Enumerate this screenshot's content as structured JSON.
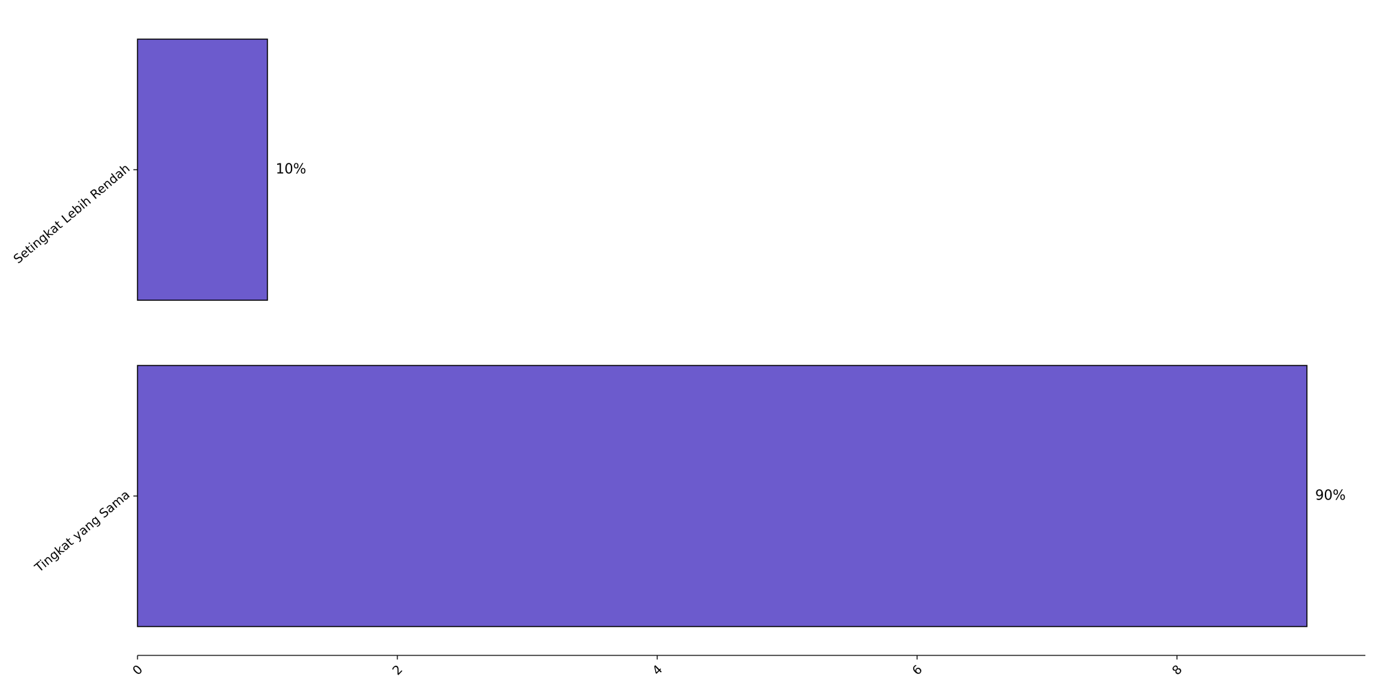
{
  "chart_data": {
    "type": "bar",
    "orientation": "horizontal",
    "categories": [
      "Setingkat Lebih Rendah",
      "Tingkat yang Sama"
    ],
    "values": [
      1,
      9
    ],
    "data_labels": [
      "10%",
      "90%"
    ],
    "x_ticks": [
      0,
      2,
      4,
      6,
      8
    ],
    "xlim": [
      0,
      9.45
    ],
    "title": "",
    "xlabel": "",
    "ylabel": "",
    "bar_color": "#6c5bcd",
    "edge_color": "#000000",
    "grid": false,
    "legend": "none"
  }
}
